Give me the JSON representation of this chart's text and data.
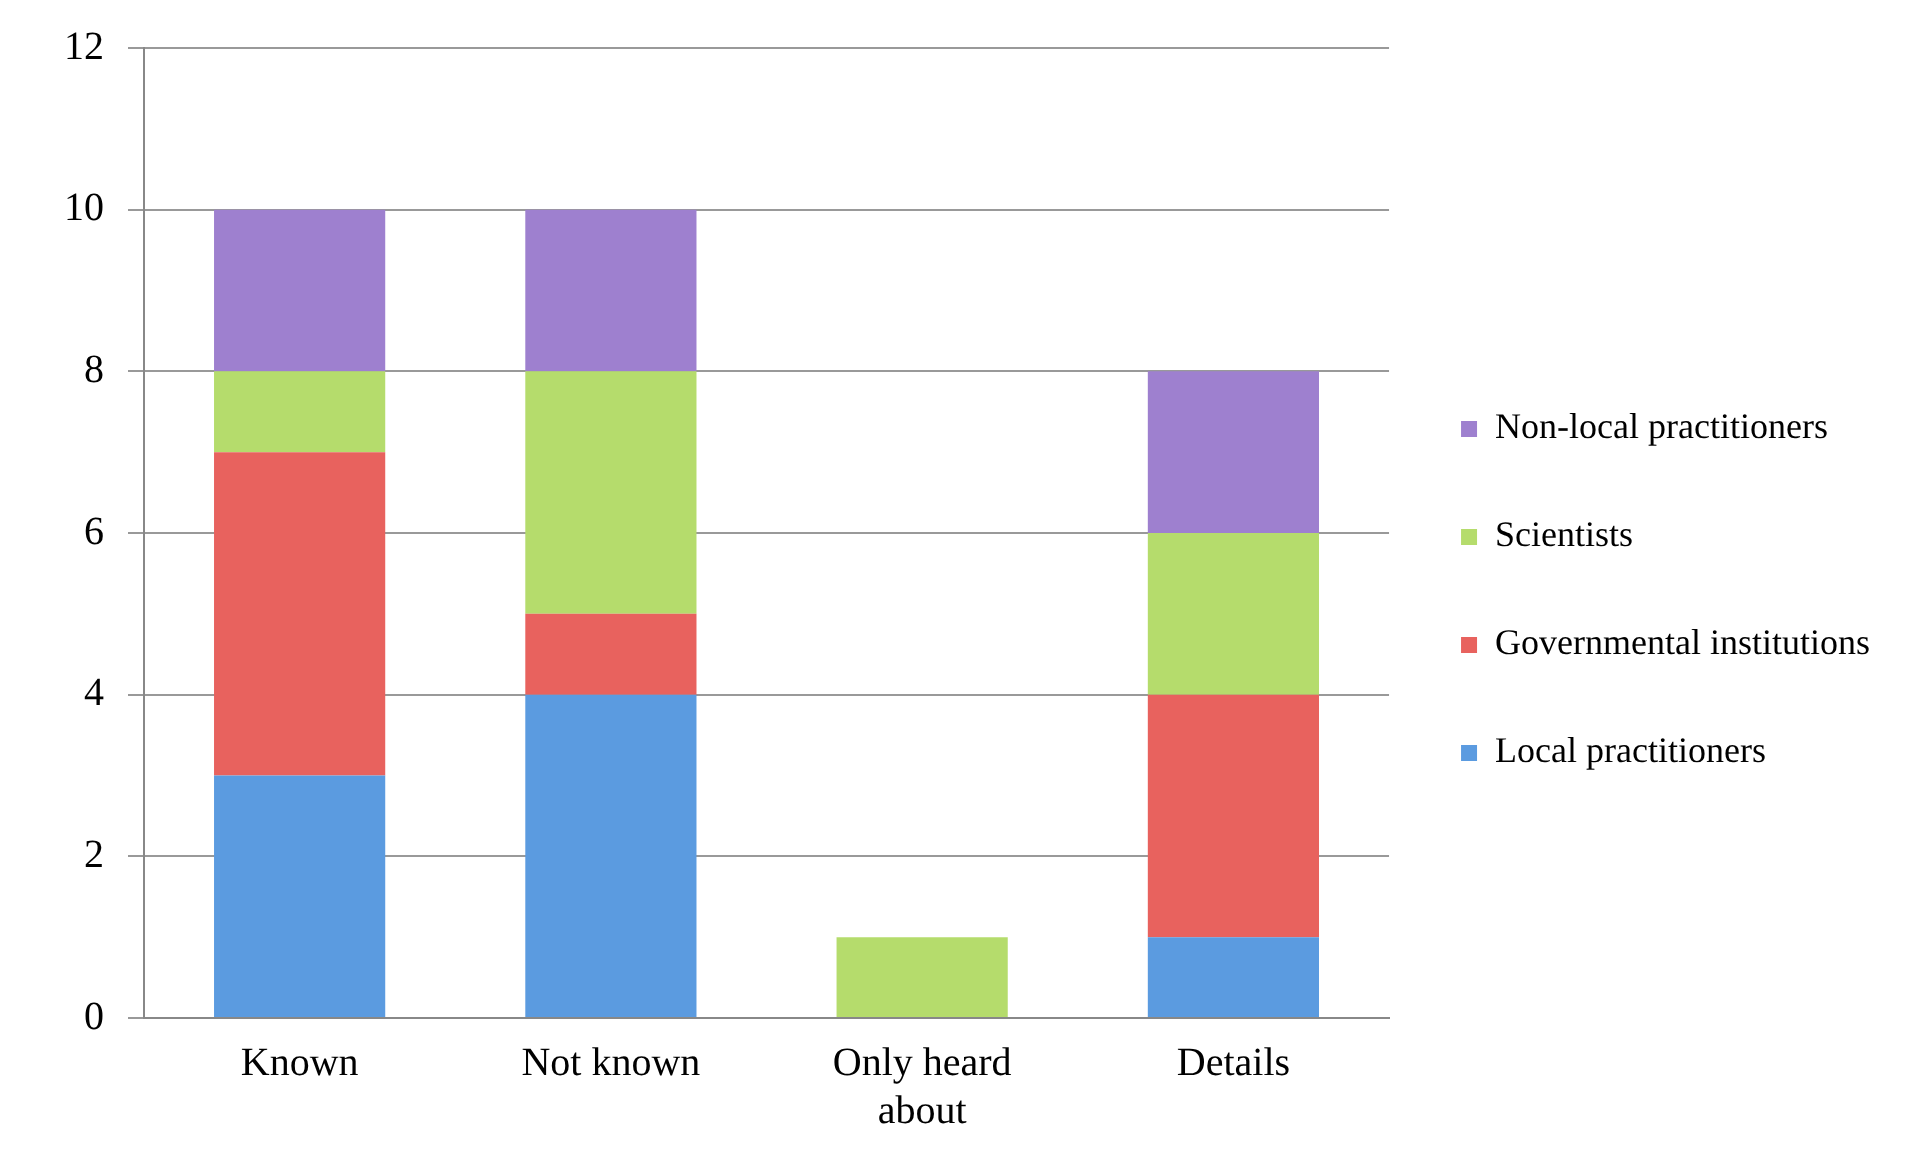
{
  "chart_data": {
    "type": "bar",
    "stacked": true,
    "categories": [
      "Known",
      "Not known",
      "Only heard about",
      "Details"
    ],
    "series": [
      {
        "name": "Local practitioners",
        "color": "#5b9be0",
        "values": [
          3,
          4,
          0,
          1
        ]
      },
      {
        "name": "Governmental institutions",
        "color": "#e8625e",
        "values": [
          4,
          1,
          0,
          3
        ]
      },
      {
        "name": "Scientists",
        "color": "#b5dc6c",
        "values": [
          1,
          3,
          1,
          2
        ]
      },
      {
        "name": "Non-local practitioners",
        "color": "#9e80cf",
        "values": [
          2,
          2,
          0,
          2
        ]
      }
    ],
    "ylim": [
      0,
      12
    ],
    "yticks": [
      0,
      2,
      4,
      6,
      8,
      10,
      12
    ],
    "grid": "y",
    "legend": "right"
  }
}
